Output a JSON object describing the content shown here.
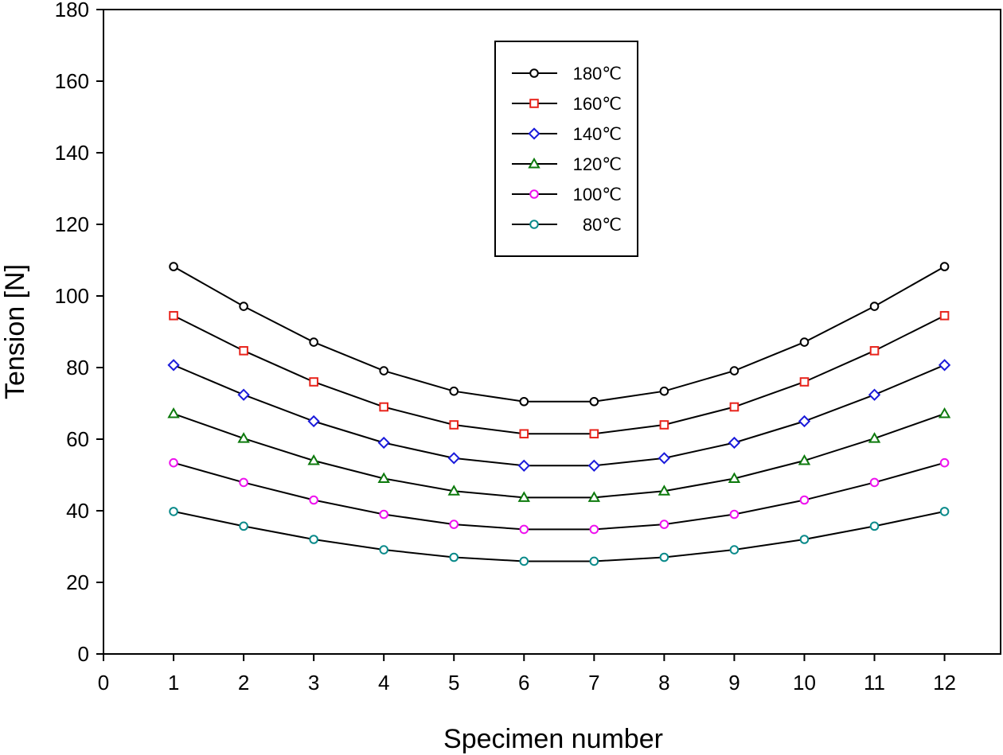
{
  "chart_data": {
    "type": "line",
    "title": "",
    "xlabel": "Specimen number",
    "ylabel": "Tension [N]",
    "xlim": [
      0,
      12.8
    ],
    "ylim": [
      0,
      180
    ],
    "x_ticks": [
      "0",
      "1",
      "2",
      "3",
      "4",
      "5",
      "6",
      "7",
      "8",
      "9",
      "10",
      "11",
      "12"
    ],
    "y_ticks": [
      "0",
      "20",
      "40",
      "60",
      "80",
      "100",
      "120",
      "140",
      "160",
      "180"
    ],
    "x": [
      1,
      2,
      3,
      4,
      5,
      6,
      7,
      8,
      9,
      10,
      11,
      12
    ],
    "grid": false,
    "legend_position": "top-center",
    "series": [
      {
        "name": "180℃",
        "marker": "circle",
        "color": "#000000",
        "values": [
          108.2,
          97.1,
          87.1,
          79.1,
          73.4,
          70.5,
          70.5,
          73.4,
          79.1,
          87.1,
          97.1,
          108.2
        ]
      },
      {
        "name": "160℃",
        "marker": "square",
        "color": "#e8231b",
        "values": [
          94.5,
          84.7,
          76.0,
          69.0,
          64.0,
          61.5,
          61.5,
          64.0,
          69.0,
          76.0,
          84.7,
          94.5
        ]
      },
      {
        "name": "140℃",
        "marker": "diamond",
        "color": "#1a1adb",
        "values": [
          80.7,
          72.4,
          65.0,
          59.0,
          54.7,
          52.6,
          52.6,
          54.7,
          59.0,
          65.0,
          72.4,
          80.7
        ]
      },
      {
        "name": "120℃",
        "marker": "triangle",
        "color": "#0c7a0c",
        "values": [
          67.1,
          60.2,
          54.0,
          49.0,
          45.5,
          43.7,
          43.7,
          45.5,
          49.0,
          54.0,
          60.2,
          67.1
        ]
      },
      {
        "name": "100℃",
        "marker": "circle",
        "color": "#ee11ee",
        "values": [
          53.4,
          47.9,
          43.0,
          39.0,
          36.2,
          34.8,
          34.8,
          36.2,
          39.0,
          43.0,
          47.9,
          53.4
        ]
      },
      {
        "name": "80℃",
        "marker": "circle",
        "color": "#0a8a8a",
        "values": [
          39.8,
          35.7,
          32.0,
          29.1,
          27.0,
          25.9,
          25.9,
          27.0,
          29.1,
          32.0,
          35.7,
          39.8
        ]
      }
    ]
  }
}
